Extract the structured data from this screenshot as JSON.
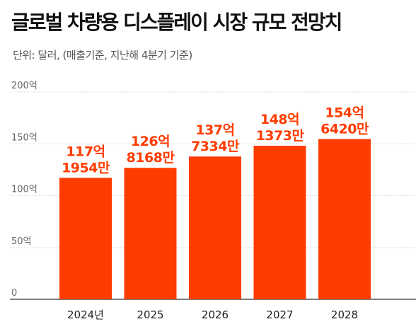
{
  "title": "글로벌 차량용 디스플레이 시장 규모 전망치",
  "subtitle": "단위: 달러, (매출기준, 지난해 4분기 기준)",
  "bar_color": "#ff3c00",
  "chart_data": {
    "type": "bar",
    "title": "글로벌 차량용 디스플레이 시장 규모 전망치",
    "subtitle": "단위: 달러, (매출기준, 지난해 4분기 기준)",
    "categories": [
      "2024년",
      "2025",
      "2026",
      "2027",
      "2028"
    ],
    "values": [
      11719540000,
      12681680000,
      13773340000,
      14813730000,
      15464200000
    ],
    "data_labels": [
      [
        "117억",
        "1954만"
      ],
      [
        "126억",
        "8168만"
      ],
      [
        "137억",
        "7334만"
      ],
      [
        "148억",
        "1373만"
      ],
      [
        "154억",
        "6420만"
      ]
    ],
    "yticks": [
      {
        "value": 0,
        "label": "0"
      },
      {
        "value": 5000000000,
        "label": "50억"
      },
      {
        "value": 10000000000,
        "label": "100억"
      },
      {
        "value": 15000000000,
        "label": "150억"
      },
      {
        "value": 20000000000,
        "label": "200억"
      }
    ],
    "ylim": [
      0,
      20000000000
    ],
    "grid": true,
    "xlabel": "",
    "ylabel": ""
  }
}
